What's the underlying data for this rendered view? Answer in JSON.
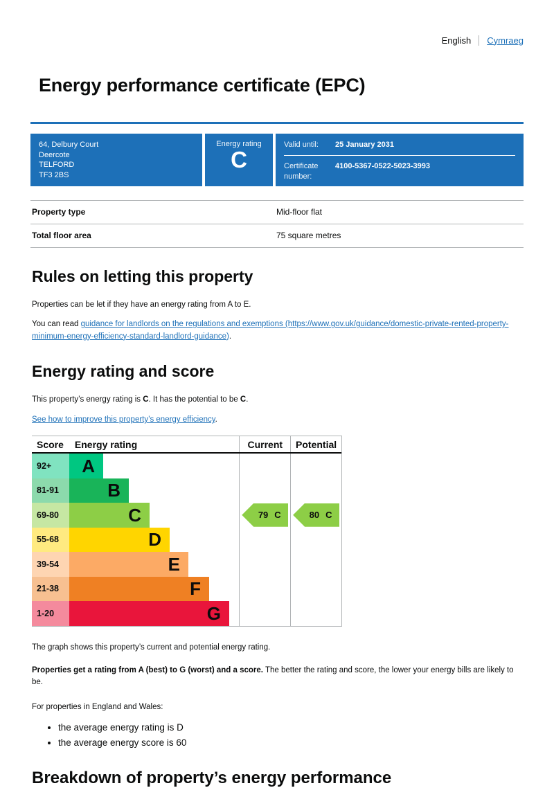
{
  "colors": {
    "brand_blue": "#1d70b8",
    "link": "#1d70b8",
    "text": "#0b0c0c",
    "border_gray": "#b1b4b6"
  },
  "language_switcher": {
    "current": "English",
    "other": "Cymraeg"
  },
  "page_title": "Energy performance certificate (EPC)",
  "summary": {
    "address_lines": [
      "64, Delbury Court",
      "Deercote",
      "TELFORD",
      "TF3 2BS"
    ],
    "rating_label": "Energy rating",
    "rating_value": "C",
    "valid_until_label": "Valid until:",
    "valid_until_value": "25 January 2031",
    "certificate_number_label": "Certificate number:",
    "certificate_number_value": "4100-5367-0522-5023-3993"
  },
  "property_table": {
    "rows": [
      {
        "label": "Property type",
        "value": "Mid-floor flat"
      },
      {
        "label": "Total floor area",
        "value": "75 square metres"
      }
    ]
  },
  "letting_section": {
    "heading": "Rules on letting this property",
    "paragraph": "Properties can be let if they have an energy rating from A to E.",
    "link_prefix": "You can read ",
    "link_text": "guidance for landlords on the regulations and exemptions (https://www.gov.uk/guidance/domestic-private-rented-property-minimum-energy-efficiency-standard-landlord-guidance)",
    "link_suffix": "."
  },
  "rating_section": {
    "heading": "Energy rating and score",
    "summary_prefix": "This property’s energy rating is ",
    "current_rating": "C",
    "summary_middle": ". It has the potential to be ",
    "potential_rating": "C",
    "summary_suffix": ".",
    "improve_link": "See how to improve this property’s energy efficiency",
    "improve_suffix": "."
  },
  "chart_data": {
    "type": "bar",
    "title": "Energy rating and score chart",
    "columns": [
      "Score",
      "Energy rating",
      "Current",
      "Potential"
    ],
    "bands": [
      {
        "score_range": "92+",
        "letter": "A",
        "color": "#00c781",
        "width_pct": 20
      },
      {
        "score_range": "81-91",
        "letter": "B",
        "color": "#19b459",
        "width_pct": 35
      },
      {
        "score_range": "69-80",
        "letter": "C",
        "color": "#8dce46",
        "width_pct": 47
      },
      {
        "score_range": "55-68",
        "letter": "D",
        "color": "#ffd500",
        "width_pct": 59
      },
      {
        "score_range": "39-54",
        "letter": "E",
        "color": "#fcaa65",
        "width_pct": 70
      },
      {
        "score_range": "21-38",
        "letter": "F",
        "color": "#ef8023",
        "width_pct": 82
      },
      {
        "score_range": "1-20",
        "letter": "G",
        "color": "#e9153b",
        "width_pct": 94
      }
    ],
    "current": {
      "score": 79,
      "band": "C"
    },
    "potential": {
      "score": 80,
      "band": "C"
    }
  },
  "chart_footer": {
    "caption": "The graph shows this property’s current and potential energy rating.",
    "bold_sentence": "Properties get a rating from A (best) to G (worst) and a score.",
    "rest_sentence": " The better the rating and score, the lower your energy bills are likely to be.",
    "regions_intro": "For properties in England and Wales:",
    "bullets": [
      "the average energy rating is D",
      "the average energy score is 60"
    ]
  },
  "breakdown_heading": "Breakdown of property’s energy performance"
}
